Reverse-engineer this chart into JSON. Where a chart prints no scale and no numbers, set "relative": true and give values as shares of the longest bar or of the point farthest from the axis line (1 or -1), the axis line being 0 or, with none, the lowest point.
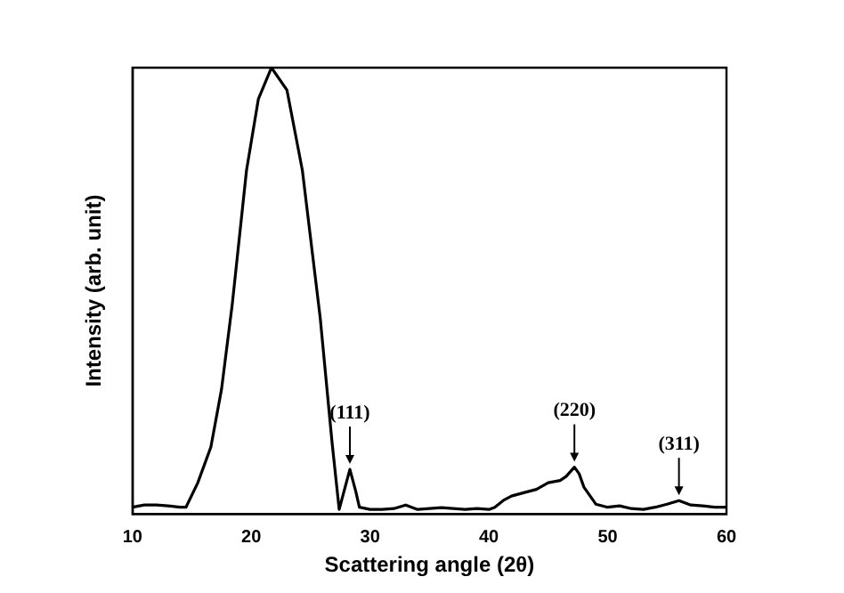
{
  "chart_data": {
    "type": "line",
    "relative": true,
    "xlabel": "Scattering angle (2θ)",
    "ylabel": "Intensity (arb. unit)",
    "x": [
      10,
      11,
      12,
      13,
      14,
      14.5,
      15.5,
      16.6,
      17.5,
      18.4,
      19.6,
      20.6,
      21.7,
      23,
      24.3,
      25.8,
      26.8,
      27.4,
      27.8,
      28.3,
      28.8,
      29.1,
      30,
      31,
      32,
      33,
      34,
      35,
      36,
      37,
      38,
      39,
      40,
      40.5,
      41.2,
      41.9,
      43,
      44,
      45,
      46,
      46.5,
      47.2,
      47.6,
      48,
      49,
      50,
      51,
      52,
      53,
      54,
      55,
      56,
      57,
      58,
      59,
      60
    ],
    "series": [
      {
        "color": "#000000",
        "values": [
          0.015,
          0.02,
          0.02,
          0.018,
          0.015,
          0.015,
          0.07,
          0.15,
          0.28,
          0.47,
          0.77,
          0.93,
          1,
          0.95,
          0.77,
          0.44,
          0.16,
          0.01,
          0.05,
          0.1,
          0.05,
          0.015,
          0.01,
          0.01,
          0.012,
          0.02,
          0.01,
          0.012,
          0.014,
          0.012,
          0.01,
          0.012,
          0.01,
          0.015,
          0.03,
          0.04,
          0.048,
          0.055,
          0.07,
          0.075,
          0.084,
          0.105,
          0.09,
          0.06,
          0.022,
          0.015,
          0.018,
          0.012,
          0.01,
          0.015,
          0.022,
          0.03,
          0.02,
          0.018,
          0.015,
          0.015
        ]
      }
    ],
    "xlim": [
      10,
      60
    ],
    "xticks": [
      10,
      20,
      30,
      40,
      50,
      60
    ],
    "grid": false,
    "legend": false,
    "marker": "none",
    "line_style": "solid",
    "annotations": [
      {
        "text": "(111)",
        "x": 28.3,
        "y": 0.1
      },
      {
        "text": "(220)",
        "x": 47.2,
        "y": 0.105
      },
      {
        "text": "(311)",
        "x": 56,
        "y": 0.03
      }
    ]
  }
}
